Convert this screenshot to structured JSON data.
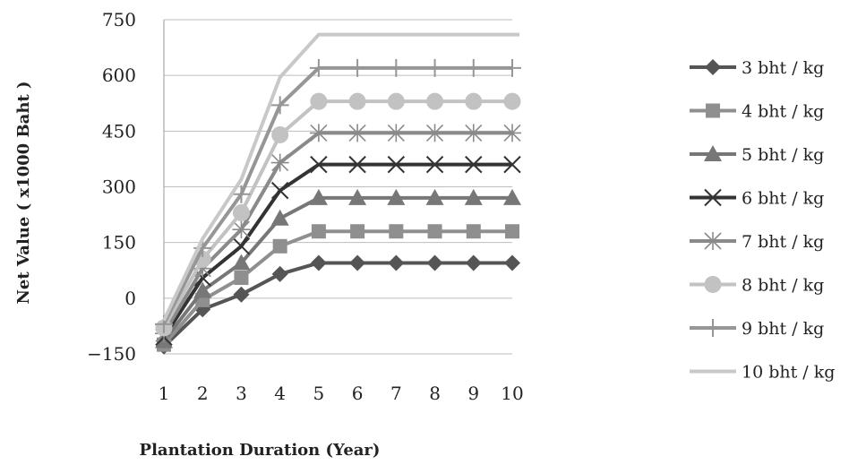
{
  "chart_data": {
    "type": "line",
    "title": "",
    "xlabel": "Plantation Duration (Year)",
    "ylabel": "Net Value ( x1000 Baht )",
    "x": [
      1,
      2,
      3,
      4,
      5,
      6,
      7,
      8,
      9,
      10
    ],
    "ylim": [
      -150,
      750
    ],
    "yticks": [
      -150,
      0,
      150,
      300,
      450,
      600,
      750
    ],
    "grid": "horizontal",
    "legend": "right",
    "series": [
      {
        "name": "3 bht / kg",
        "marker": "diamond",
        "color": "#555555",
        "values": [
          -130,
          -30,
          10,
          65,
          95,
          95,
          95,
          95,
          95,
          95
        ]
      },
      {
        "name": "4 bht / kg",
        "marker": "square",
        "color": "#8f8f8f",
        "values": [
          -125,
          -5,
          55,
          140,
          180,
          180,
          180,
          180,
          180,
          180
        ]
      },
      {
        "name": "5 bht / kg",
        "marker": "triangle",
        "color": "#777777",
        "values": [
          -115,
          20,
          95,
          215,
          270,
          270,
          270,
          270,
          270,
          270
        ]
      },
      {
        "name": "6 bht / kg",
        "marker": "x",
        "color": "#333333",
        "values": [
          -105,
          55,
          140,
          290,
          360,
          360,
          360,
          360,
          360,
          360
        ]
      },
      {
        "name": "7 bht / kg",
        "marker": "asterisk",
        "color": "#8a8a8a",
        "values": [
          -95,
          80,
          185,
          365,
          445,
          445,
          445,
          445,
          445,
          445
        ]
      },
      {
        "name": "8 bht / kg",
        "marker": "circle",
        "color": "#c2c2c2",
        "values": [
          -80,
          105,
          230,
          440,
          530,
          530,
          530,
          530,
          530,
          530
        ]
      },
      {
        "name": "9 bht / kg",
        "marker": "plus",
        "color": "#969696",
        "values": [
          -70,
          135,
          280,
          520,
          620,
          620,
          620,
          620,
          620,
          620
        ]
      },
      {
        "name": "10 bht / kg",
        "marker": "none",
        "color": "#c8c8c8",
        "values": [
          -60,
          160,
          320,
          595,
          710,
          710,
          710,
          710,
          710,
          710
        ]
      }
    ]
  }
}
